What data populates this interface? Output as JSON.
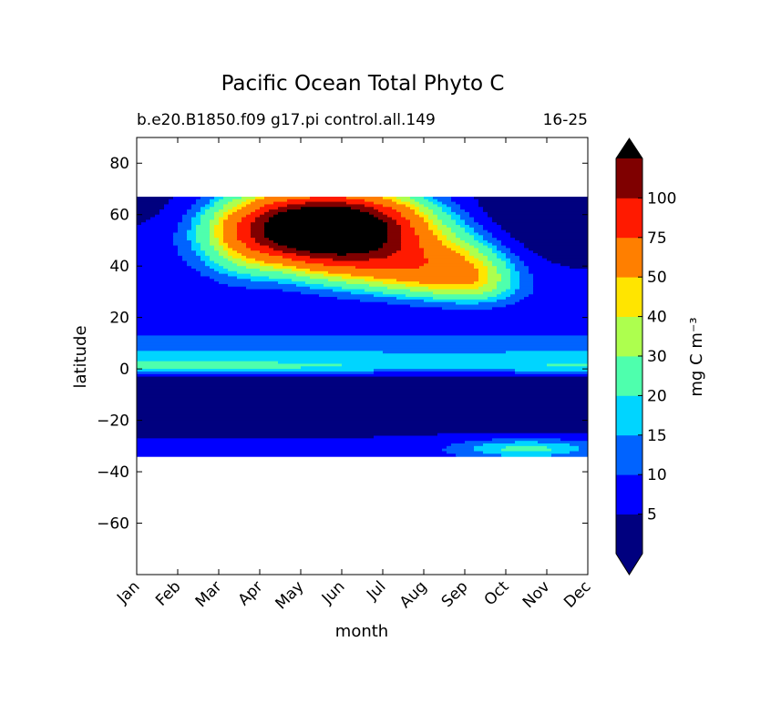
{
  "chart_data": {
    "type": "heatmap",
    "title": "Pacific Ocean Total Phyto C",
    "subtitle_left": "b.e20.B1850.f09 g17.pi control.all.149",
    "subtitle_right": "16-25",
    "xlabel": "month",
    "ylabel": "latitude",
    "x_categories": [
      "Jan",
      "Feb",
      "Mar",
      "Apr",
      "May",
      "Jun",
      "Jul",
      "Aug",
      "Sep",
      "Oct",
      "Nov",
      "Dec"
    ],
    "ylim": [
      -80,
      90
    ],
    "y_ticks": [
      80,
      60,
      40,
      20,
      0,
      -20,
      -40,
      -60
    ],
    "y_tick_labels": [
      "80",
      "60",
      "40",
      "20",
      "0",
      "−20",
      "−40",
      "−60"
    ],
    "data_latitude_range": [
      -34,
      67
    ],
    "colorbar": {
      "label": "mg C m⁻³",
      "levels": [
        0,
        5,
        10,
        15,
        20,
        30,
        40,
        50,
        75,
        100,
        125
      ],
      "tick_labels": [
        "5",
        "10",
        "15",
        "20",
        "30",
        "40",
        "50",
        "75",
        "100"
      ],
      "colors": [
        "#00007f",
        "#0000ff",
        "#0063ff",
        "#00d5ff",
        "#4effad",
        "#adff4e",
        "#ffe500",
        "#ff7f00",
        "#ff1a00",
        "#7f0000"
      ],
      "under_color": "#00007f",
      "over_color": "#000000",
      "extend": "both"
    }
  }
}
